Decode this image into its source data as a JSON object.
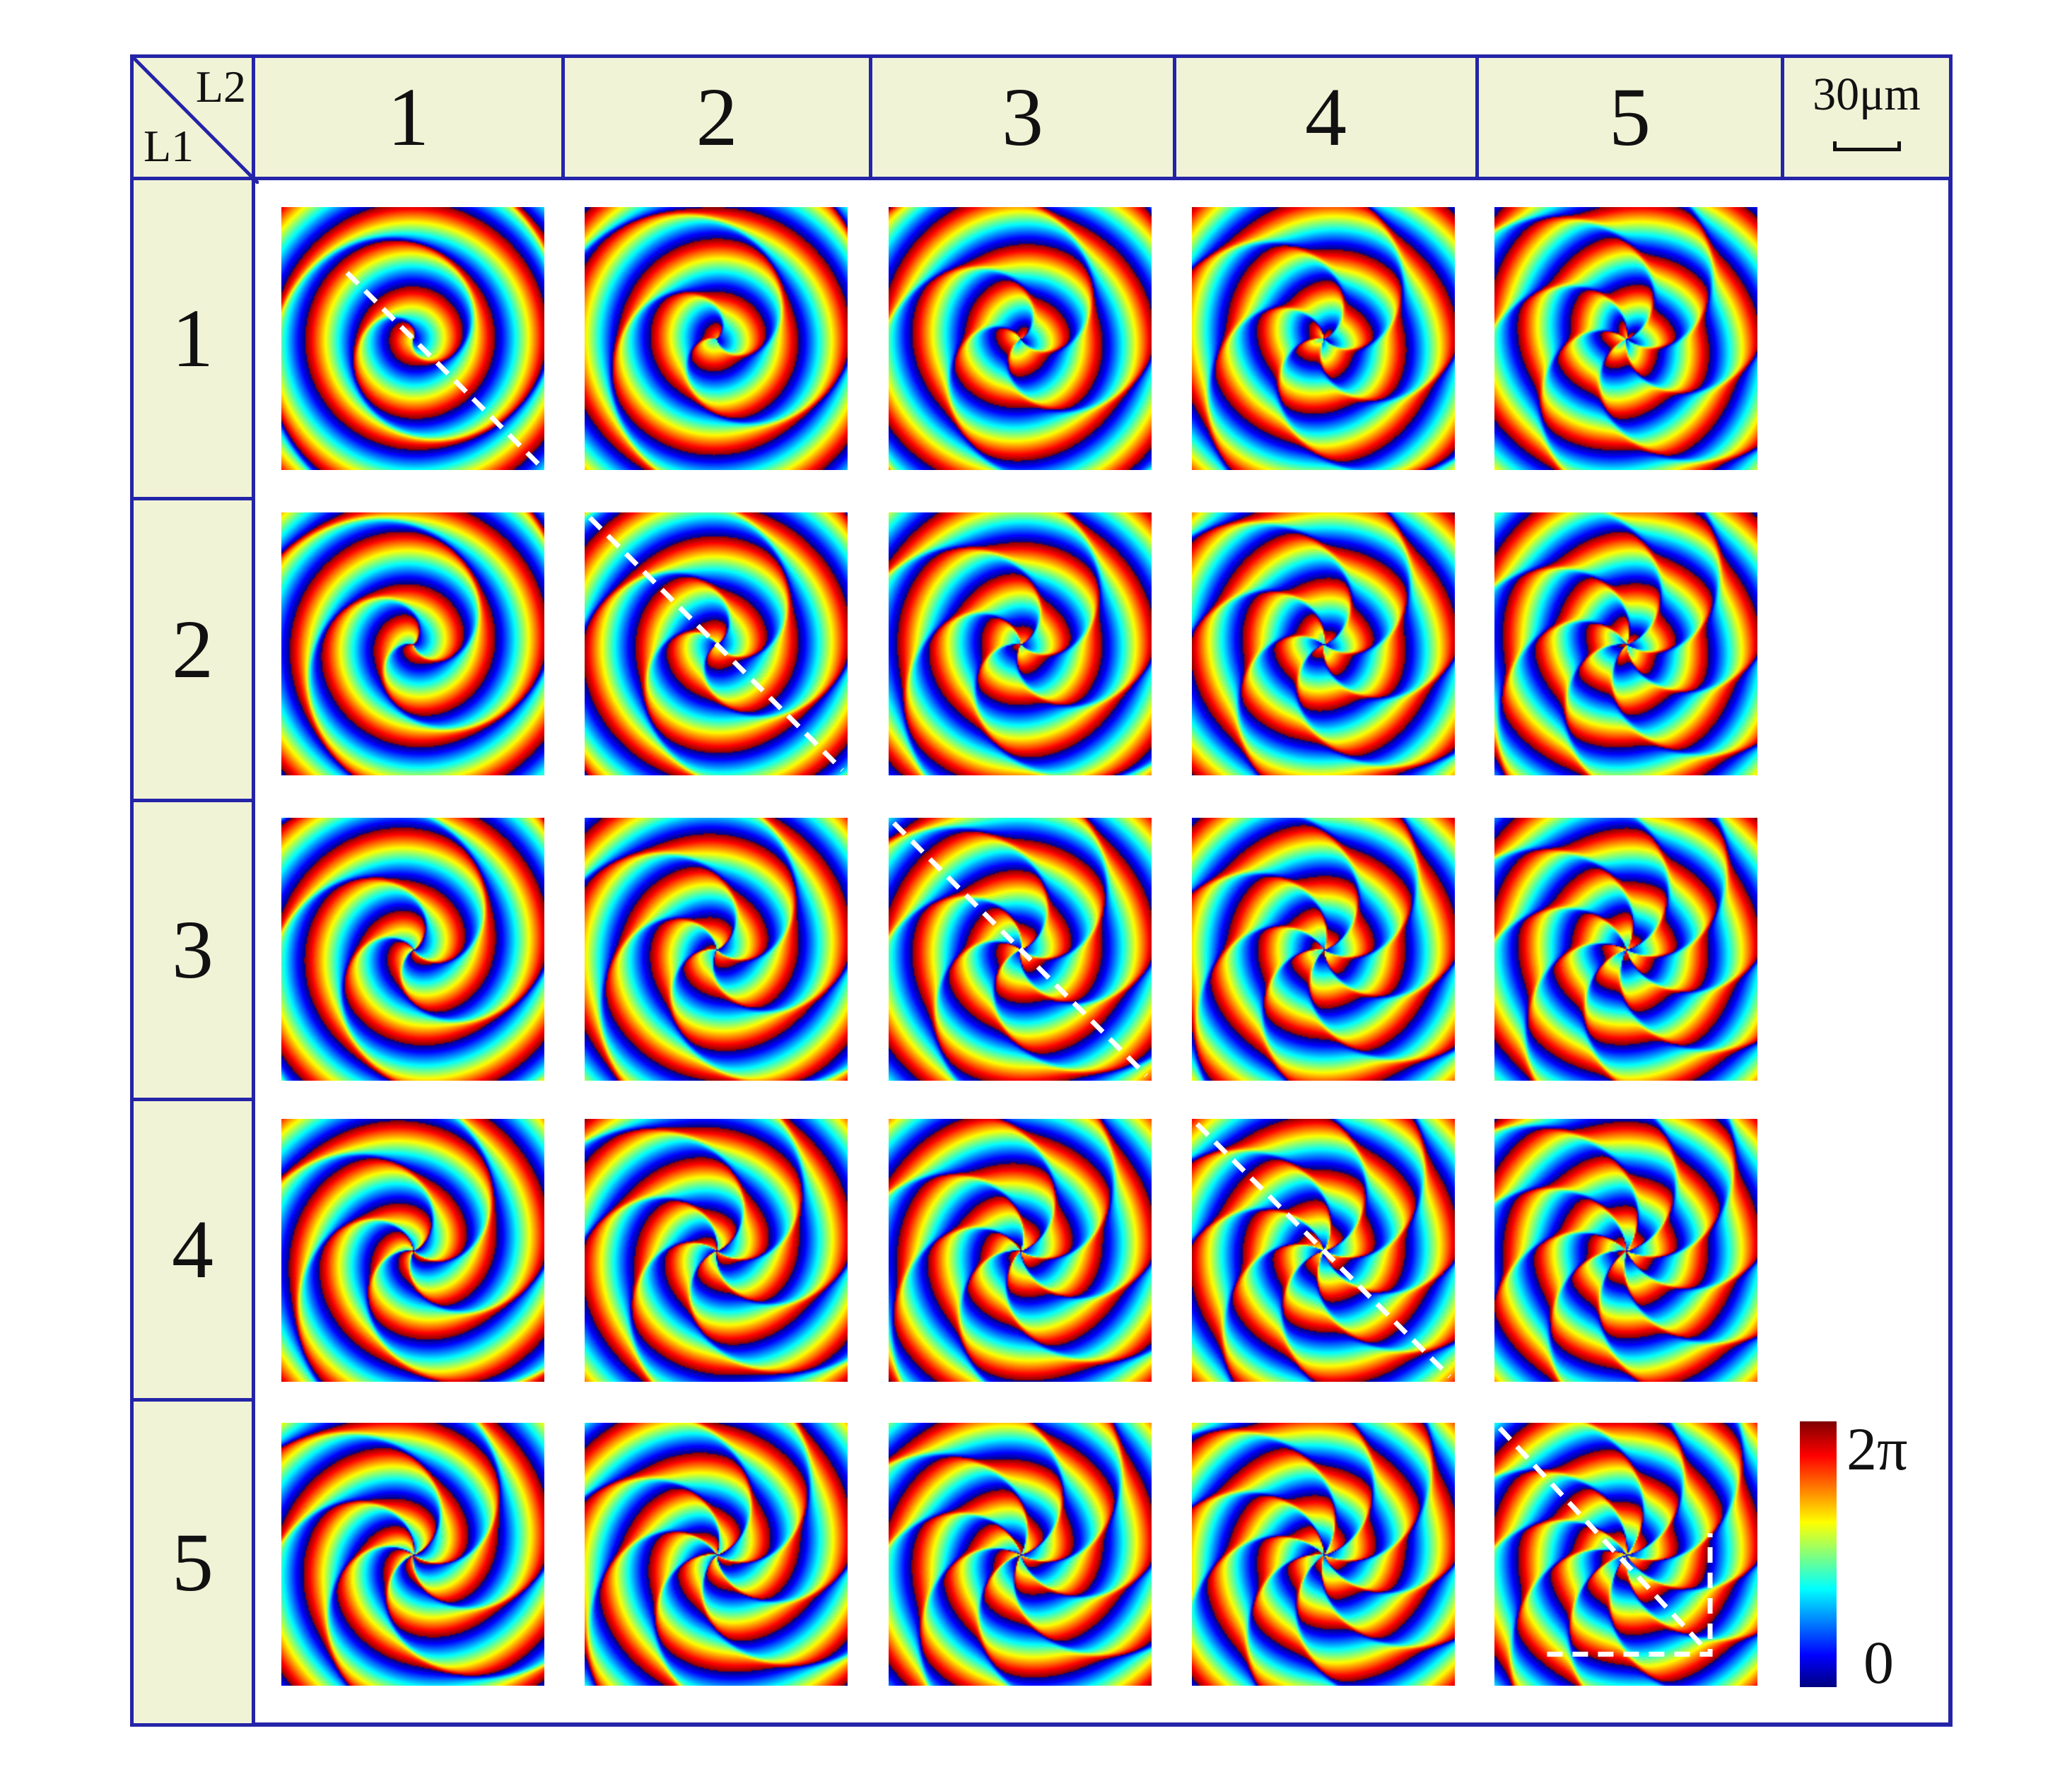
{
  "corner": {
    "l2": "L2",
    "l1": "L1"
  },
  "columns": [
    "1",
    "2",
    "3",
    "4",
    "5"
  ],
  "rows": [
    "1",
    "2",
    "3",
    "4",
    "5"
  ],
  "scale_bar": {
    "label": "30μm"
  },
  "colorbar": {
    "max_label": "2π",
    "min_label": "0",
    "colors": [
      "#00007f",
      "#0000ff",
      "#00ffff",
      "#ffff00",
      "#ff0000",
      "#7f0000"
    ]
  },
  "frame_color": "#2424a8",
  "header_fill": "#f1f3d6",
  "diagonal_markers": [
    {
      "row": 1,
      "col": 1
    },
    {
      "row": 2,
      "col": 2
    },
    {
      "row": 3,
      "col": 3
    },
    {
      "row": 4,
      "col": 4
    },
    {
      "row": 5,
      "col": 5
    }
  ]
}
